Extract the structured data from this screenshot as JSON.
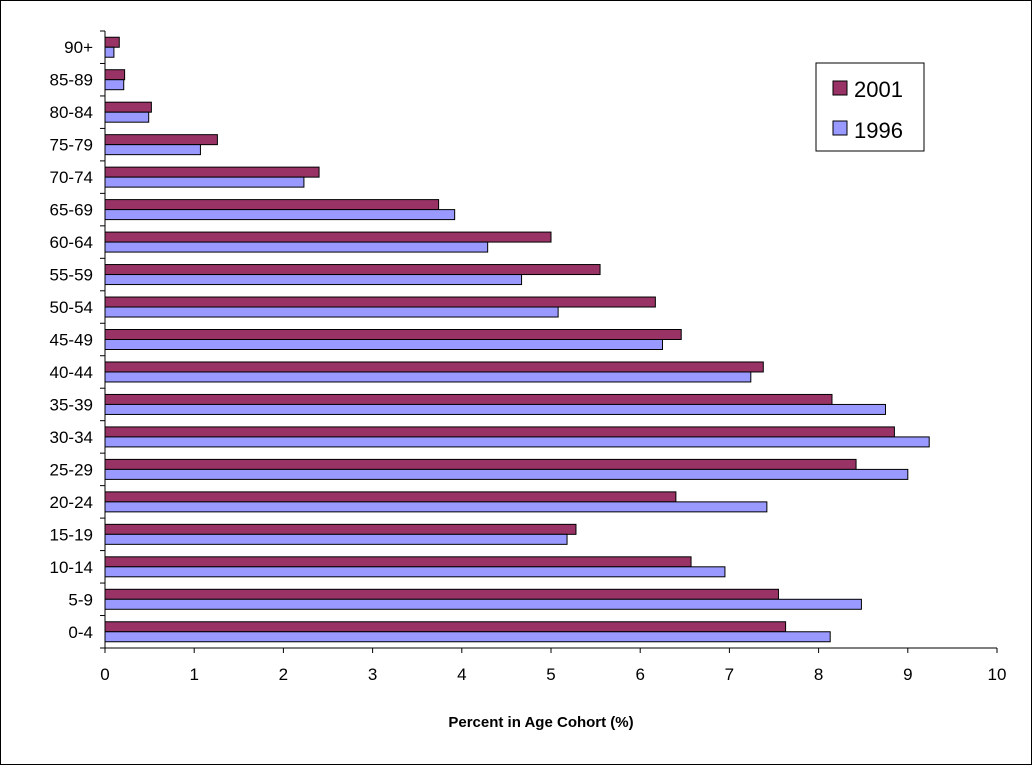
{
  "chart_data": {
    "type": "bar",
    "orientation": "horizontal",
    "categories": [
      "0-4",
      "5-9",
      "10-14",
      "15-19",
      "20-24",
      "25-29",
      "30-34",
      "35-39",
      "40-44",
      "45-49",
      "50-54",
      "55-59",
      "60-64",
      "65-69",
      "70-74",
      "75-79",
      "80-84",
      "85-89",
      "90+"
    ],
    "series": [
      {
        "name": "2001",
        "color": "#993366",
        "values": [
          7.63,
          7.55,
          6.57,
          5.28,
          6.4,
          8.42,
          8.85,
          8.15,
          7.38,
          6.46,
          6.17,
          5.55,
          5.0,
          3.74,
          2.4,
          1.26,
          0.52,
          0.22,
          0.16
        ]
      },
      {
        "name": "1996",
        "color": "#9999FF",
        "values": [
          8.13,
          8.48,
          6.95,
          5.18,
          7.42,
          9.0,
          9.24,
          8.75,
          7.24,
          6.25,
          5.08,
          4.67,
          4.29,
          3.92,
          2.23,
          1.07,
          0.49,
          0.21,
          0.1
        ]
      }
    ],
    "xlim": [
      0,
      10
    ],
    "xticks": [
      0,
      1,
      2,
      3,
      4,
      5,
      6,
      7,
      8,
      9,
      10
    ],
    "xlabel": "Percent in Age Cohort (%)",
    "ylabel": "",
    "title": "",
    "grid": false,
    "legend": "top-right"
  }
}
